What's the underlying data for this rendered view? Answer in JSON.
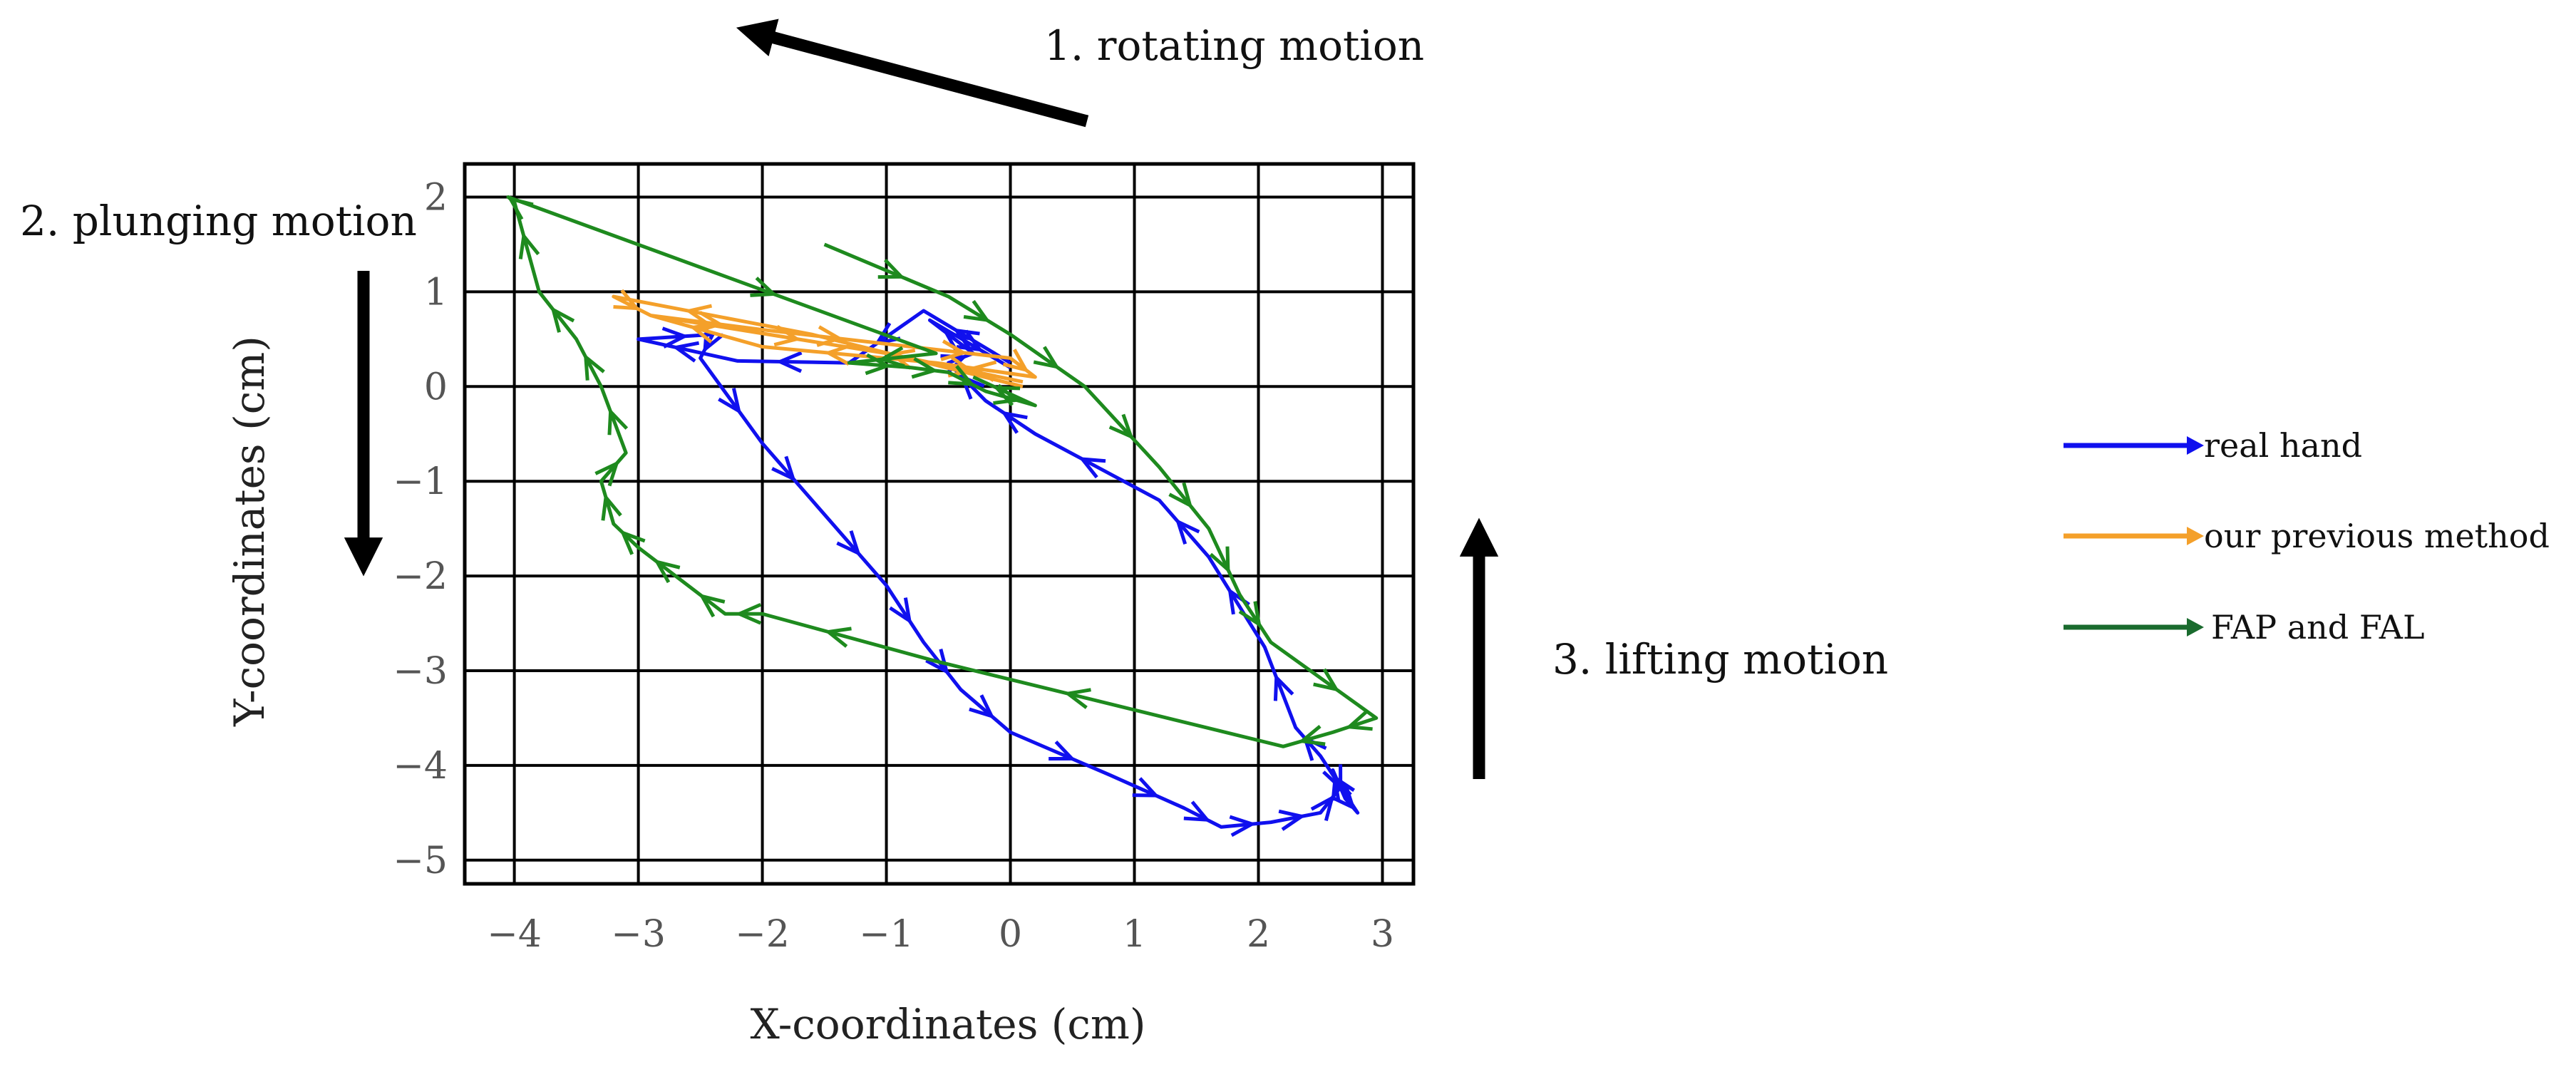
{
  "chart_data": {
    "type": "line",
    "xlabel": "X-coordinates (cm)",
    "ylabel": "Y-coordinates (cm)",
    "xlim": [
      -4.4,
      3.25
    ],
    "ylim": [
      -5.25,
      2.35
    ],
    "xticks": [
      -4,
      -3,
      -2,
      -1,
      0,
      1,
      2,
      3
    ],
    "xtick_labels": [
      "−4",
      "−3",
      "−2",
      "−1",
      "0",
      "1",
      "2",
      "3"
    ],
    "yticks": [
      2,
      1,
      0,
      -1,
      -2,
      -3,
      -4,
      -5
    ],
    "ytick_labels": [
      "2",
      "1",
      "0",
      "−1",
      "−2",
      "−3",
      "−4",
      "−5"
    ],
    "grid": true,
    "legend_position": "right",
    "series": [
      {
        "name": "real hand",
        "color": "#1010ee",
        "points": [
          [
            0.0,
            0.25
          ],
          [
            -0.7,
            0.8
          ],
          [
            -1.3,
            0.25
          ],
          [
            -2.2,
            0.27
          ],
          [
            -3.0,
            0.5
          ],
          [
            -2.4,
            0.55
          ],
          [
            -2.5,
            0.3
          ],
          [
            -2.0,
            -0.6
          ],
          [
            -1.6,
            -1.2
          ],
          [
            -1.0,
            -2.1
          ],
          [
            -0.7,
            -2.7
          ],
          [
            -0.4,
            -3.2
          ],
          [
            0.0,
            -3.65
          ],
          [
            0.8,
            -4.1
          ],
          [
            1.4,
            -4.45
          ],
          [
            1.7,
            -4.65
          ],
          [
            2.1,
            -4.6
          ],
          [
            2.5,
            -4.5
          ],
          [
            2.65,
            -4.25
          ],
          [
            2.6,
            -4.05
          ],
          [
            2.7,
            -4.35
          ],
          [
            2.8,
            -4.5
          ],
          [
            2.5,
            -3.9
          ],
          [
            2.3,
            -3.6
          ],
          [
            2.05,
            -2.75
          ],
          [
            1.6,
            -1.8
          ],
          [
            1.2,
            -1.2
          ],
          [
            0.2,
            -0.5
          ],
          [
            -0.2,
            -0.15
          ],
          [
            -0.5,
            0.25
          ],
          [
            -0.3,
            0.35
          ],
          [
            -0.65,
            0.7
          ],
          [
            0.0,
            0.2
          ]
        ]
      },
      {
        "name": "our previous method",
        "color": "#f4a02a",
        "points": [
          [
            0.1,
            0.0
          ],
          [
            -1.6,
            0.55
          ],
          [
            -3.2,
            0.95
          ],
          [
            -2.9,
            0.75
          ],
          [
            -2.0,
            0.6
          ],
          [
            -1.0,
            0.45
          ],
          [
            0.0,
            0.3
          ],
          [
            0.2,
            0.1
          ],
          [
            -0.6,
            0.25
          ],
          [
            -2.0,
            0.42
          ],
          [
            -2.9,
            0.75
          ],
          [
            -1.0,
            0.35
          ],
          [
            0.1,
            0.05
          ]
        ]
      },
      {
        "name": "FAP and FAL",
        "color": "#1e8a1e",
        "points": [
          [
            -1.5,
            1.5
          ],
          [
            -0.5,
            0.95
          ],
          [
            0.0,
            0.55
          ],
          [
            0.6,
            0.0
          ],
          [
            1.2,
            -0.85
          ],
          [
            1.6,
            -1.5
          ],
          [
            1.85,
            -2.2
          ],
          [
            2.1,
            -2.7
          ],
          [
            2.95,
            -3.5
          ],
          [
            2.6,
            -3.65
          ],
          [
            2.2,
            -3.8
          ],
          [
            -0.6,
            -2.9
          ],
          [
            -2.0,
            -2.4
          ],
          [
            -2.3,
            -2.4
          ],
          [
            -2.6,
            -2.1
          ],
          [
            -3.0,
            -1.7
          ],
          [
            -3.2,
            -1.45
          ],
          [
            -3.3,
            -1.0
          ],
          [
            -3.1,
            -0.7
          ],
          [
            -3.3,
            0.0
          ],
          [
            -3.5,
            0.5
          ],
          [
            -3.8,
            1.0
          ],
          [
            -4.0,
            1.95
          ],
          [
            -4.05,
            2.0
          ],
          [
            -0.6,
            0.35
          ],
          [
            -1.3,
            0.25
          ],
          [
            -0.8,
            0.2
          ],
          [
            -0.5,
            0.15
          ],
          [
            -0.2,
            -0.05
          ],
          [
            0.2,
            -0.2
          ],
          [
            -0.3,
            0.1
          ]
        ]
      }
    ],
    "annotations": [
      {
        "text": "1. rotating motion"
      },
      {
        "text": "2. plunging motion"
      },
      {
        "text": "3. lifting motion"
      }
    ]
  }
}
